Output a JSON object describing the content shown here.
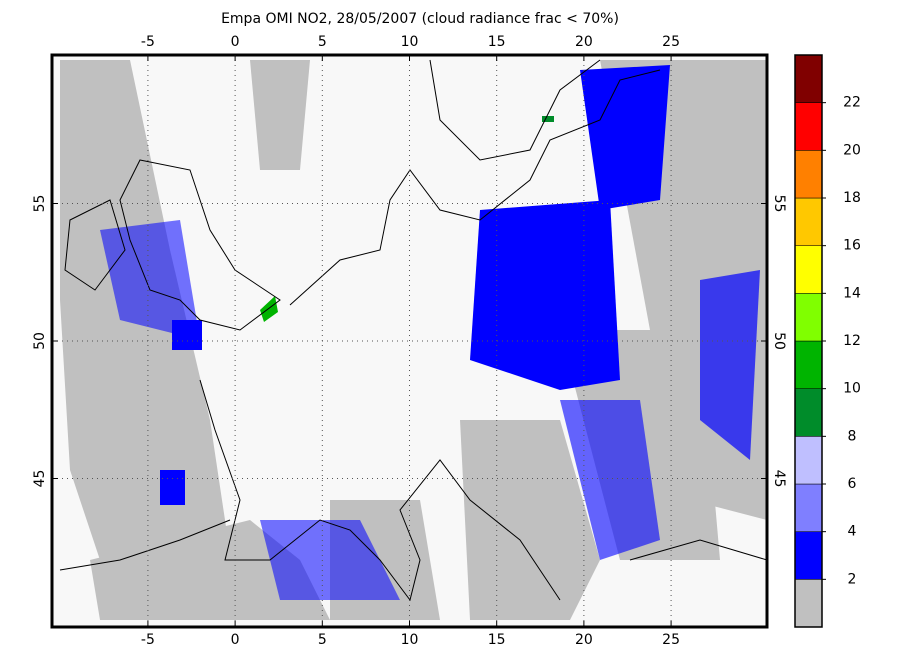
{
  "title": "Empa OMI NO2, 28/05/2007 (cloud radiance frac < 70%)",
  "map": {
    "lon_range": [
      -10.5,
      30.5
    ],
    "lat_range": [
      39.6,
      60.4
    ],
    "lon_ticks": [
      -5,
      0,
      5,
      10,
      15,
      20,
      25
    ],
    "lat_ticks": [
      45,
      50,
      55
    ],
    "grid": true
  },
  "colorbar": {
    "labels": [
      2,
      4,
      6,
      8,
      10,
      12,
      14,
      16,
      18,
      20,
      22
    ],
    "colors": [
      "#c0c0c0",
      "#0000ff",
      "#7f7fff",
      "#bfbfff",
      "#008c2a",
      "#00b400",
      "#80ff00",
      "#ffff00",
      "#ffc800",
      "#ff8000",
      "#ff0000",
      "#800000"
    ]
  }
}
